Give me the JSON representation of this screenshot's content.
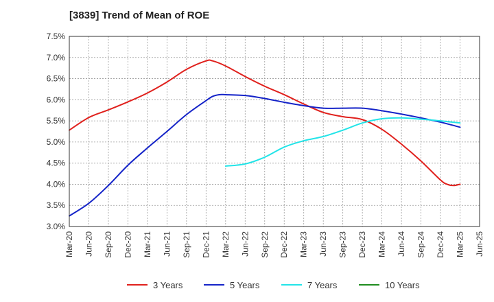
{
  "chart_data": {
    "type": "line",
    "title": "[3839]  Trend of Mean of ROE",
    "xlabel": "",
    "ylabel": "",
    "grid": true,
    "legend_position": "bottom",
    "x_ticks": [
      "Mar-20",
      "Jun-20",
      "Sep-20",
      "Dec-20",
      "Mar-21",
      "Jun-21",
      "Sep-21",
      "Dec-21",
      "Mar-22",
      "Jun-22",
      "Sep-22",
      "Dec-22",
      "Mar-23",
      "Jun-23",
      "Sep-23",
      "Dec-23",
      "Mar-24",
      "Jun-24",
      "Sep-24",
      "Dec-24",
      "Mar-25",
      "Jun-25"
    ],
    "y_ticks": [
      "7.5%",
      "7.0%",
      "6.5%",
      "6.0%",
      "5.5%",
      "5.0%",
      "4.5%",
      "4.0%",
      "3.5%",
      "3.0%"
    ],
    "ylim": [
      3.0,
      7.5
    ],
    "series": [
      {
        "name": "3 Years",
        "color": "#e0201c",
        "x": [
          "Mar-20",
          "Jun-20",
          "Sep-20",
          "Dec-20",
          "Mar-21",
          "Jun-21",
          "Sep-21",
          "Dec-21",
          "Jan-22",
          "Mar-22",
          "Jun-22",
          "Sep-22",
          "Dec-22",
          "Mar-23",
          "Jun-23",
          "Sep-23",
          "Dec-23",
          "Mar-24",
          "Jun-24",
          "Sep-24",
          "Dec-24",
          "Jan-25",
          "Feb-25",
          "Mar-25"
        ],
        "values": [
          5.28,
          5.58,
          5.76,
          5.95,
          6.16,
          6.42,
          6.72,
          6.92,
          6.92,
          6.8,
          6.55,
          6.32,
          6.12,
          5.9,
          5.7,
          5.6,
          5.53,
          5.3,
          4.95,
          4.55,
          4.1,
          4.0,
          3.97,
          4.0
        ]
      },
      {
        "name": "5 Years",
        "color": "#1423c8",
        "x": [
          "Mar-20",
          "Jun-20",
          "Sep-20",
          "Dec-20",
          "Mar-21",
          "Jun-21",
          "Sep-21",
          "Dec-21",
          "Jan-22",
          "Feb-22",
          "Mar-22",
          "Jun-22",
          "Sep-22",
          "Dec-22",
          "Mar-23",
          "Jun-23",
          "Sep-23",
          "Dec-23",
          "Mar-24",
          "Jun-24",
          "Sep-24",
          "Dec-24",
          "Mar-25"
        ],
        "values": [
          3.25,
          3.55,
          3.97,
          4.45,
          4.86,
          5.25,
          5.65,
          5.98,
          6.08,
          6.12,
          6.12,
          6.1,
          6.03,
          5.94,
          5.86,
          5.8,
          5.8,
          5.8,
          5.74,
          5.66,
          5.57,
          5.47,
          5.35
        ]
      },
      {
        "name": "7 Years",
        "color": "#22e4e8",
        "x": [
          "Mar-22",
          "Jun-22",
          "Sep-22",
          "Dec-22",
          "Mar-23",
          "Jun-23",
          "Sep-23",
          "Dec-23",
          "Mar-24",
          "Jun-24",
          "Sep-24",
          "Dec-24",
          "Mar-25"
        ],
        "values": [
          4.43,
          4.48,
          4.64,
          4.88,
          5.03,
          5.13,
          5.28,
          5.45,
          5.55,
          5.57,
          5.54,
          5.5,
          5.45
        ]
      },
      {
        "name": "10 Years",
        "color": "#1e8c1e",
        "x": [],
        "values": []
      }
    ]
  }
}
